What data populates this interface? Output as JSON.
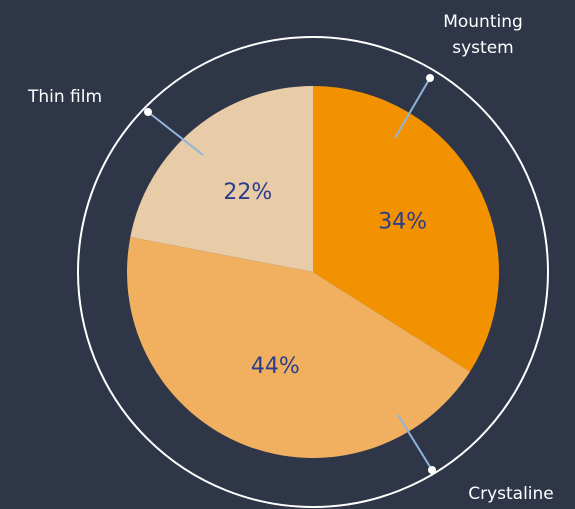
{
  "chart_data": {
    "type": "pie",
    "categories": [
      "Mounting system",
      "Crystaline",
      "Thin film"
    ],
    "values": [
      34,
      44,
      22
    ],
    "value_labels": [
      "34%",
      "44%",
      "22%"
    ],
    "colors": [
      "#f39200",
      "#f0b060",
      "#e8cca8"
    ]
  }
}
